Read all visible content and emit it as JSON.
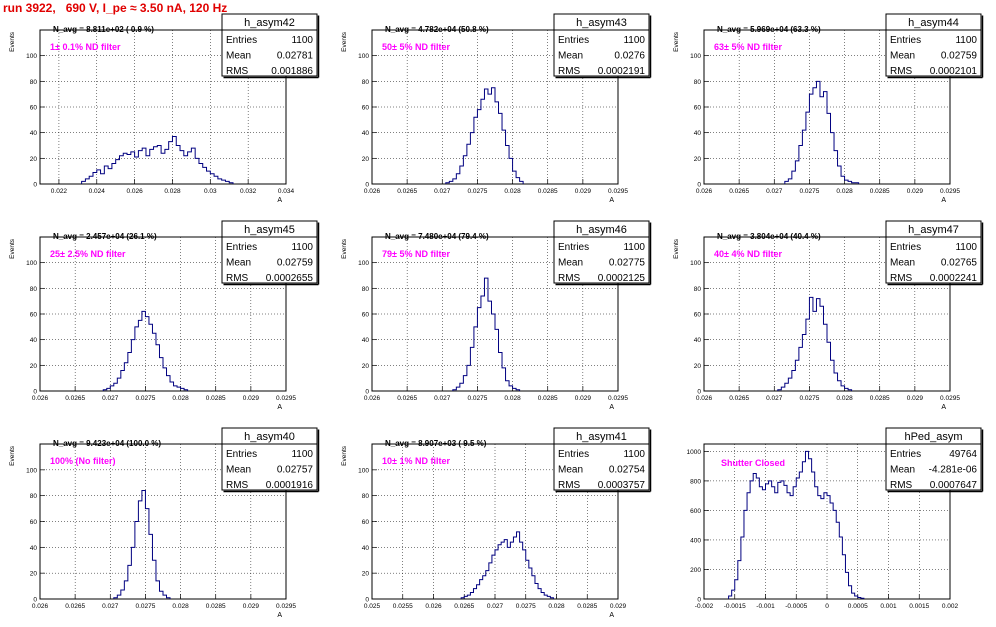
{
  "run_title": "run 3922,   690 V, I_pe ≈ 3.50 nA, 120 Hz",
  "chart_data": [
    {
      "type": "histogram",
      "name": "h_asym42",
      "ylabel": "Events",
      "xlabel": "A",
      "xlim": [
        0.021,
        0.034
      ],
      "ylim": [
        0,
        120
      ],
      "xticks": [
        0.022,
        0.024,
        0.026,
        0.028,
        0.03,
        0.032,
        0.034
      ],
      "xtick_labels": [
        "0.022",
        "0.024",
        "0.026",
        "0.028",
        "0.03",
        "0.032",
        "0.034"
      ],
      "yticks": [
        0,
        20,
        40,
        60,
        80,
        100
      ],
      "navg": "N_avg = 8.811e+02 ( 0.9 %)",
      "filter": "1± 0.1% ND filter",
      "stats": {
        "entries": "1100",
        "mean": "0.02781",
        "rms": "0.001886"
      },
      "bin_start": 0.0232,
      "bin_width": 0.0002,
      "counts": [
        2,
        4,
        6,
        9,
        11,
        8,
        14,
        12,
        16,
        19,
        22,
        24,
        23,
        25,
        21,
        26,
        28,
        22,
        27,
        29,
        30,
        24,
        27,
        33,
        37,
        30,
        26,
        22,
        25,
        28,
        20,
        16,
        13,
        10,
        8,
        6,
        4,
        3,
        2,
        1
      ]
    },
    {
      "type": "histogram",
      "name": "h_asym43",
      "ylabel": "Events",
      "xlabel": "A",
      "xlim": [
        0.026,
        0.0295
      ],
      "ylim": [
        0,
        120
      ],
      "xticks": [
        0.026,
        0.0265,
        0.027,
        0.0275,
        0.028,
        0.0285,
        0.029,
        0.0295
      ],
      "xtick_labels": [
        "0.026",
        "0.0265",
        "0.027",
        "0.0275",
        "0.028",
        "0.0285",
        "0.029",
        "0.0295"
      ],
      "yticks": [
        0,
        20,
        40,
        60,
        80,
        100
      ],
      "navg": "N_avg = 4.782e+04 (50.8 %)",
      "filter": "50± 5% ND filter",
      "stats": {
        "entries": "1100",
        "mean": "0.0276",
        "rms": "0.0002191"
      },
      "bin_start": 0.02705,
      "bin_width": 5e-05,
      "counts": [
        1,
        2,
        4,
        8,
        14,
        22,
        31,
        40,
        52,
        58,
        66,
        74,
        70,
        75,
        64,
        55,
        42,
        30,
        20,
        10,
        5,
        2
      ]
    },
    {
      "type": "histogram",
      "name": "h_asym44",
      "ylabel": "Events",
      "xlabel": "A",
      "xlim": [
        0.026,
        0.0295
      ],
      "ylim": [
        0,
        120
      ],
      "xticks": [
        0.026,
        0.0265,
        0.027,
        0.0275,
        0.028,
        0.0285,
        0.029,
        0.0295
      ],
      "xtick_labels": [
        "0.026",
        "0.0265",
        "0.027",
        "0.0275",
        "0.028",
        "0.0285",
        "0.029",
        "0.0295"
      ],
      "yticks": [
        0,
        20,
        40,
        60,
        80,
        100
      ],
      "navg": "N_avg = 5.969e+04 (63.3 %)",
      "filter": "63± 5% ND filter",
      "stats": {
        "entries": "1100",
        "mean": "0.02759",
        "rms": "0.0002101"
      },
      "bin_start": 0.02715,
      "bin_width": 5e-05,
      "counts": [
        2,
        4,
        10,
        18,
        30,
        42,
        56,
        70,
        75,
        80,
        68,
        72,
        55,
        40,
        26,
        14,
        6,
        3,
        2,
        1,
        1
      ]
    },
    {
      "type": "histogram",
      "name": "h_asym45",
      "ylabel": "Events",
      "xlabel": "A",
      "xlim": [
        0.026,
        0.0295
      ],
      "ylim": [
        0,
        120
      ],
      "xticks": [
        0.026,
        0.0265,
        0.027,
        0.0275,
        0.028,
        0.0285,
        0.029,
        0.0295
      ],
      "xtick_labels": [
        "0.026",
        "0.0265",
        "0.027",
        "0.0275",
        "0.028",
        "0.0285",
        "0.029",
        "0.0295"
      ],
      "yticks": [
        0,
        20,
        40,
        60,
        80,
        100
      ],
      "navg": "N_avg = 2.457e+04 (26.1 %)",
      "filter": "25± 2.5% ND filter",
      "stats": {
        "entries": "1100",
        "mean": "0.02759",
        "rms": "0.0002655"
      },
      "bin_start": 0.0269,
      "bin_width": 5e-05,
      "counts": [
        1,
        2,
        4,
        6,
        10,
        16,
        22,
        30,
        40,
        50,
        55,
        62,
        58,
        52,
        45,
        36,
        26,
        18,
        12,
        7,
        4,
        3,
        2,
        1
      ]
    },
    {
      "type": "histogram",
      "name": "h_asym46",
      "ylabel": "Events",
      "xlabel": "A",
      "xlim": [
        0.026,
        0.0295
      ],
      "ylim": [
        0,
        120
      ],
      "xticks": [
        0.026,
        0.0265,
        0.027,
        0.0275,
        0.028,
        0.0285,
        0.029,
        0.0295
      ],
      "xtick_labels": [
        "0.026",
        "0.0265",
        "0.027",
        "0.0275",
        "0.028",
        "0.0285",
        "0.029",
        "0.0295"
      ],
      "yticks": [
        0,
        20,
        40,
        60,
        80,
        100
      ],
      "navg": "N_avg = 7.480e+04 (79.4 %)",
      "filter": "79± 5% ND filter",
      "stats": {
        "entries": "1100",
        "mean": "0.02775",
        "rms": "0.0002125"
      },
      "bin_start": 0.02715,
      "bin_width": 5e-05,
      "counts": [
        1,
        3,
        6,
        12,
        20,
        34,
        50,
        65,
        74,
        88,
        70,
        60,
        48,
        30,
        18,
        8,
        4,
        2,
        1
      ]
    },
    {
      "type": "histogram",
      "name": "h_asym47",
      "ylabel": "Events",
      "xlabel": "A",
      "xlim": [
        0.026,
        0.0295
      ],
      "ylim": [
        0,
        120
      ],
      "xticks": [
        0.026,
        0.0265,
        0.027,
        0.0275,
        0.028,
        0.0285,
        0.029,
        0.0295
      ],
      "xtick_labels": [
        "0.026",
        "0.0265",
        "0.027",
        "0.0275",
        "0.028",
        "0.0285",
        "0.029",
        "0.0295"
      ],
      "yticks": [
        0,
        20,
        40,
        60,
        80,
        100
      ],
      "navg": "N_avg = 3.804e+04 (40.4 %)",
      "filter": "40± 4% ND filter",
      "stats": {
        "entries": "1100",
        "mean": "0.02765",
        "rms": "0.0002241"
      },
      "bin_start": 0.02705,
      "bin_width": 5e-05,
      "counts": [
        1,
        3,
        6,
        10,
        16,
        24,
        34,
        44,
        56,
        73,
        62,
        72,
        66,
        52,
        38,
        24,
        14,
        8,
        4,
        2,
        1
      ]
    },
    {
      "type": "histogram",
      "name": "h_asym40",
      "ylabel": "Events",
      "xlabel": "A",
      "xlim": [
        0.026,
        0.0295
      ],
      "ylim": [
        0,
        120
      ],
      "xticks": [
        0.026,
        0.0265,
        0.027,
        0.0275,
        0.028,
        0.0285,
        0.029,
        0.0295
      ],
      "xtick_labels": [
        "0.026",
        "0.0265",
        "0.027",
        "0.0275",
        "0.028",
        "0.0285",
        "0.029",
        "0.0295"
      ],
      "yticks": [
        0,
        20,
        40,
        60,
        80,
        100
      ],
      "navg": "N_avg = 9.423e+04 (100.0 %)",
      "filter": "100% (No filter)",
      "stats": {
        "entries": "1100",
        "mean": "0.02757",
        "rms": "0.0001916"
      },
      "bin_start": 0.02705,
      "bin_width": 5e-05,
      "counts": [
        1,
        3,
        7,
        14,
        26,
        40,
        60,
        76,
        84,
        70,
        50,
        30,
        14,
        6,
        3,
        1
      ]
    },
    {
      "type": "histogram",
      "name": "h_asym41",
      "ylabel": "Events",
      "xlabel": "A",
      "xlim": [
        0.025,
        0.029
      ],
      "ylim": [
        0,
        120
      ],
      "xticks": [
        0.025,
        0.0255,
        0.026,
        0.0265,
        0.027,
        0.0275,
        0.028,
        0.0285,
        0.029
      ],
      "xtick_labels": [
        "0.025",
        "0.0255",
        "0.026",
        "0.0265",
        "0.027",
        "0.0275",
        "0.028",
        "0.0285",
        "0.029"
      ],
      "yticks": [
        0,
        20,
        40,
        60,
        80,
        100
      ],
      "navg": "N_avg = 8.907e+03 ( 9.5 %)",
      "filter": "10± 1% ND filter",
      "stats": {
        "entries": "1100",
        "mean": "0.02754",
        "rms": "0.0003757"
      },
      "bin_start": 0.02645,
      "bin_width": 5e-05,
      "counts": [
        1,
        2,
        3,
        5,
        8,
        11,
        15,
        18,
        22,
        28,
        34,
        38,
        42,
        44,
        46,
        40,
        44,
        48,
        52,
        44,
        38,
        30,
        24,
        18,
        12,
        8,
        5,
        3,
        2,
        1
      ]
    },
    {
      "type": "histogram",
      "name": "hPed_asym",
      "ylabel": "",
      "xlabel": "",
      "xlim": [
        -0.002,
        0.002
      ],
      "ylim": [
        0,
        1050
      ],
      "xticks": [
        -0.002,
        -0.0015,
        -0.001,
        -0.0005,
        0,
        0.0005,
        0.001,
        0.0015,
        0.002
      ],
      "xtick_labels": [
        "-0.002",
        "-0.0015",
        "-0.001",
        "-0.0005",
        "0",
        "0.0005",
        "0.001",
        "0.0015",
        "0.002"
      ],
      "yticks": [
        0,
        200,
        400,
        600,
        800,
        1000
      ],
      "navg": "",
      "filter": "Shutter Closed",
      "stats": {
        "entries": "49764",
        "mean": "-4.281e-06",
        "rms": "0.0007647"
      },
      "bin_start": -0.0016,
      "bin_width": 5e-05,
      "counts": [
        20,
        60,
        130,
        260,
        420,
        600,
        720,
        800,
        850,
        820,
        760,
        740,
        780,
        800,
        760,
        720,
        790,
        800,
        770,
        720,
        700,
        760,
        820,
        860,
        930,
        1000,
        950,
        860,
        760,
        700,
        680,
        720,
        700,
        650,
        600,
        520,
        420,
        300,
        180,
        90,
        40,
        20,
        10,
        5
      ]
    }
  ]
}
